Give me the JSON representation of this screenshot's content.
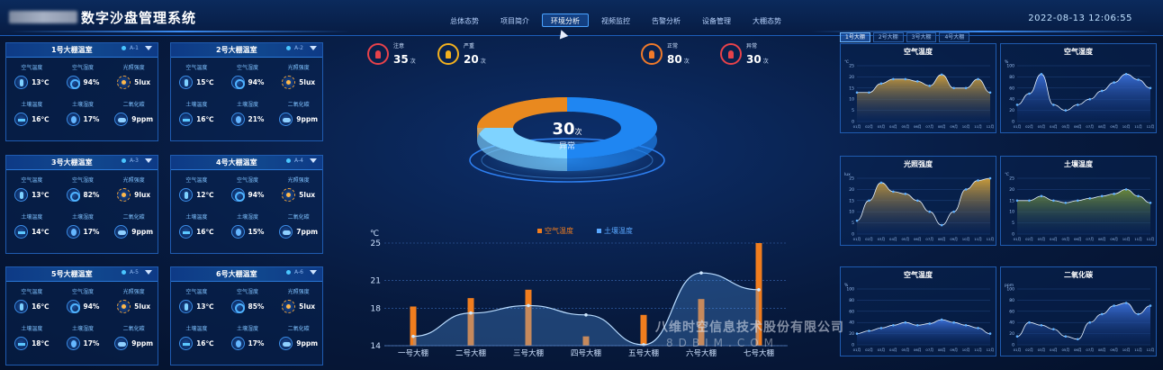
{
  "app": {
    "title": "数字沙盘管理系统",
    "clock": "2022-08-13 12:06:55"
  },
  "nav": {
    "items": [
      "总体态势",
      "项目简介",
      "环境分析",
      "视频监控",
      "告警分析",
      "设备管理",
      "大棚态势"
    ],
    "active_index": 2
  },
  "labels": {
    "air_temp": "空气温度",
    "air_hum": "空气湿度",
    "light": "光照强度",
    "soil_temp": "土壤温度",
    "soil_hum": "土壤湿度",
    "co2": "二氧化碳"
  },
  "greenhouses": [
    {
      "name": "1号大棚温室",
      "code": "A-1",
      "air_temp": "13℃",
      "air_hum": "94%",
      "light": "5lux",
      "soil_temp": "16℃",
      "soil_hum": "17%",
      "co2": "9ppm"
    },
    {
      "name": "2号大棚温室",
      "code": "A-2",
      "air_temp": "15℃",
      "air_hum": "94%",
      "light": "5lux",
      "soil_temp": "16℃",
      "soil_hum": "21%",
      "co2": "9ppm"
    },
    {
      "name": "3号大棚温室",
      "code": "A-3",
      "air_temp": "13℃",
      "air_hum": "82%",
      "light": "9lux",
      "soil_temp": "14℃",
      "soil_hum": "17%",
      "co2": "9ppm"
    },
    {
      "name": "4号大棚温室",
      "code": "A-4",
      "air_temp": "12℃",
      "air_hum": "94%",
      "light": "5lux",
      "soil_temp": "16℃",
      "soil_hum": "15%",
      "co2": "7ppm"
    },
    {
      "name": "5号大棚温室",
      "code": "A-5",
      "air_temp": "16℃",
      "air_hum": "94%",
      "light": "5lux",
      "soil_temp": "18℃",
      "soil_hum": "17%",
      "co2": "9ppm"
    },
    {
      "name": "6号大棚温室",
      "code": "A-6",
      "air_temp": "13℃",
      "air_hum": "85%",
      "light": "5lux",
      "soil_temp": "16℃",
      "soil_hum": "17%",
      "co2": "9ppm"
    }
  ],
  "alarms": [
    {
      "label": "注意",
      "count": "35",
      "unit": "次",
      "color": "#e8424a"
    },
    {
      "label": "严重",
      "count": "20",
      "unit": "次",
      "color": "#f3b11e"
    },
    {
      "label": "正常",
      "count": "80",
      "unit": "次",
      "color": "#f07a2a"
    },
    {
      "label": "异常",
      "count": "30",
      "unit": "次",
      "color": "#e8424a"
    }
  ],
  "donut": {
    "value": "30",
    "unit": "次",
    "label": "异常",
    "slices": [
      {
        "share": 0.5,
        "color": "#1f86f2"
      },
      {
        "share": 0.25,
        "color": "#7fd3ff"
      },
      {
        "share": 0.25,
        "color": "#e9891f"
      }
    ]
  },
  "right_tabs": {
    "items": [
      "1号大棚",
      "2号大棚",
      "3号大棚",
      "4号大棚"
    ],
    "active_index": 0
  },
  "chart_data": [
    {
      "type": "bar",
      "title": "",
      "ylabel": "℃",
      "ylim": [
        14,
        25
      ],
      "yticks": [
        14,
        18,
        21,
        25
      ],
      "categories": [
        "一号大棚",
        "二号大棚",
        "三号大棚",
        "四号大棚",
        "五号大棚",
        "六号大棚",
        "七号大棚"
      ],
      "series": [
        {
          "name": "空气温度",
          "kind": "bar",
          "color": "#f07d1e",
          "values": [
            18.2,
            19.1,
            20.0,
            15.0,
            17.3,
            19.0,
            25.0
          ]
        },
        {
          "name": "土壤温度",
          "kind": "line",
          "color": "#5aa8ff",
          "values": [
            15.0,
            17.5,
            18.3,
            17.3,
            14.1,
            21.8,
            20.0
          ]
        }
      ],
      "legend": "top"
    },
    {
      "type": "area",
      "title": "空气温度",
      "ylabel": "℃",
      "ylim": [
        0,
        25
      ],
      "yticks": [
        0,
        5,
        10,
        15,
        20,
        25
      ],
      "categories": [
        "01月",
        "02月",
        "03月",
        "04月",
        "05月",
        "06月",
        "07月",
        "08月",
        "09月",
        "10月",
        "11月",
        "12月"
      ],
      "series": [
        {
          "values": [
            13,
            13,
            17,
            19,
            19,
            18,
            16,
            21,
            15,
            15,
            19,
            13
          ]
        }
      ],
      "color": "#d4a23a"
    },
    {
      "type": "area",
      "title": "空气湿度",
      "ylabel": "%",
      "ylim": [
        0,
        100
      ],
      "yticks": [
        0,
        20,
        40,
        60,
        80,
        100
      ],
      "categories": [
        "01月",
        "02月",
        "03月",
        "04月",
        "05月",
        "06月",
        "07月",
        "08月",
        "09月",
        "10月",
        "11月",
        "12月"
      ],
      "series": [
        {
          "values": [
            30,
            50,
            85,
            30,
            20,
            30,
            40,
            55,
            70,
            85,
            75,
            60
          ]
        }
      ],
      "color": "#3b6fd8"
    },
    {
      "type": "area",
      "title": "光照强度",
      "ylabel": "lux",
      "ylim": [
        0,
        25
      ],
      "yticks": [
        0,
        5,
        10,
        15,
        20,
        25
      ],
      "categories": [
        "01月",
        "02月",
        "03月",
        "04月",
        "05月",
        "06月",
        "07月",
        "08月",
        "09月",
        "10月",
        "11月",
        "12月"
      ],
      "series": [
        {
          "values": [
            6,
            15,
            23,
            19,
            18,
            15,
            10,
            4,
            10,
            20,
            24,
            25
          ]
        }
      ],
      "color": "#d4a23a"
    },
    {
      "type": "area",
      "title": "土壤温度",
      "ylabel": "℃",
      "ylim": [
        0,
        25
      ],
      "yticks": [
        0,
        5,
        10,
        15,
        20,
        25
      ],
      "categories": [
        "01月",
        "02月",
        "03月",
        "04月",
        "05月",
        "06月",
        "07月",
        "08月",
        "09月",
        "10月",
        "11月",
        "12月"
      ],
      "series": [
        {
          "values": [
            15,
            15,
            17,
            15,
            14,
            15,
            16,
            17,
            18,
            20,
            17,
            14
          ]
        }
      ],
      "color": "#6f8d3a"
    },
    {
      "type": "area",
      "title": "空气温度",
      "ylabel": "%",
      "ylim": [
        0,
        100
      ],
      "yticks": [
        0,
        20,
        40,
        60,
        80,
        100
      ],
      "categories": [
        "01月",
        "02月",
        "03月",
        "04月",
        "05月",
        "06月",
        "07月",
        "08月",
        "09月",
        "10月",
        "11月",
        "12月"
      ],
      "series": [
        {
          "values": [
            20,
            25,
            30,
            35,
            40,
            35,
            38,
            45,
            40,
            35,
            30,
            20
          ]
        }
      ],
      "color": "#3b6fd8"
    },
    {
      "type": "area",
      "title": "二氧化碳",
      "ylabel": "ppm",
      "ylim": [
        0,
        100
      ],
      "yticks": [
        0,
        20,
        40,
        60,
        80,
        100
      ],
      "categories": [
        "01月",
        "02月",
        "03月",
        "04月",
        "05月",
        "06月",
        "07月",
        "08月",
        "09月",
        "10月",
        "11月",
        "12月"
      ],
      "series": [
        {
          "values": [
            15,
            40,
            35,
            28,
            15,
            10,
            40,
            55,
            70,
            75,
            55,
            70
          ]
        }
      ],
      "color": "#3b6fd8"
    }
  ],
  "watermark": {
    "company": "八维时空信息技术股份有限公司",
    "site": "8DBIM.COM"
  }
}
